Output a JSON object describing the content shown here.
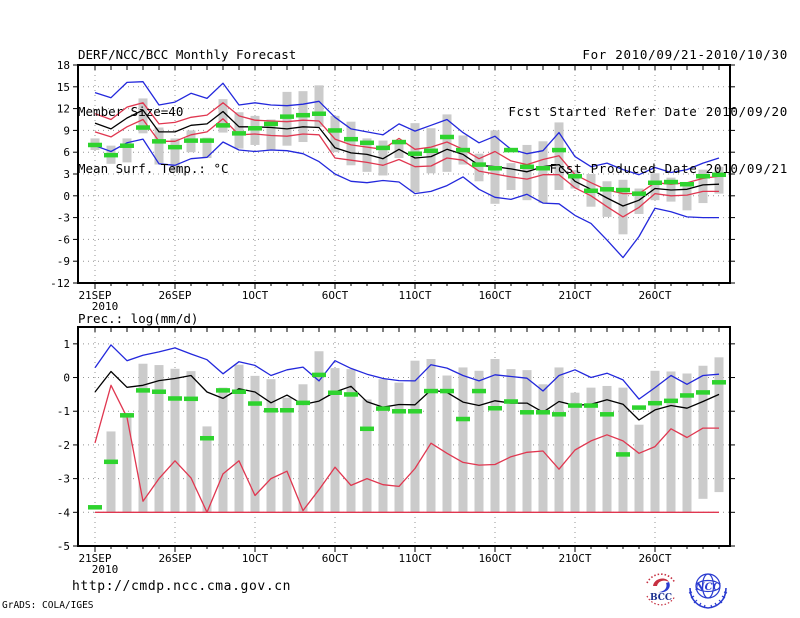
{
  "header": {
    "title": "DERF/NCC/BCC Monthly Forecast",
    "member_size": "Member Size=40",
    "for_period": "For 2010/09/21-2010/10/30",
    "fcst_started": "Fcst Started Refer Date 2010/09/20",
    "fcst_produced": "Fcst Produced Date 2010/09/21"
  },
  "footer": {
    "url": "http://cmdp.ncc.cma.gov.cn",
    "grads_credit": "GrADS: COLA/IGES",
    "logos": [
      {
        "name": "bcc-logo",
        "label": "BCC"
      },
      {
        "name": "ncc-logo",
        "label": "NCC"
      }
    ]
  },
  "colors": {
    "blue": "#2328dc",
    "red": "#e03750",
    "green": "#2ed32e",
    "bar": "#cbcbcb",
    "grid": "#949494",
    "black": "#000000",
    "logo_blue": "#2a3bd0",
    "logo_red": "#c63041",
    "logo_navy": "#1a2f8f"
  },
  "chart_data": [
    {
      "type": "line",
      "name": "surface-temperature-forecast",
      "title": "Mean Surf. Temp.: °C",
      "n_days": 40,
      "start_date": "21SEP2010",
      "x_tick_labels": [
        "21SEP",
        "26SEP",
        "1OCT",
        "6OCT",
        "11OCT",
        "16OCT",
        "21OCT",
        "26OCT"
      ],
      "x_tick_days": [
        0,
        5,
        10,
        15,
        20,
        25,
        30,
        35
      ],
      "x_sub_label": "2010",
      "ylim": [
        -12,
        18
      ],
      "y_ticks": [
        18,
        15,
        12,
        9,
        6,
        3,
        0,
        -3,
        -6,
        -9,
        -12
      ],
      "grid": true,
      "series": [
        {
          "name": "member-max",
          "color": "blue",
          "values": [
            14.2,
            13.5,
            15.6,
            15.7,
            12.5,
            12.9,
            14.1,
            13.4,
            15.5,
            12.5,
            12.8,
            12.5,
            12.4,
            12.6,
            13.0,
            10.8,
            9.2,
            8.8,
            8.4,
            9.9,
            8.9,
            9.7,
            10.5,
            8.7,
            7.3,
            8.2,
            6.4,
            5.8,
            6.2,
            8.7,
            5.4,
            4.0,
            4.5,
            3.6,
            2.9,
            3.9,
            3.2,
            3.6,
            4.5,
            5.2
          ]
        },
        {
          "name": "upper-spread",
          "color": "red",
          "values": [
            11.3,
            10.5,
            12.2,
            12.8,
            9.9,
            10.1,
            10.8,
            11.1,
            12.8,
            11.0,
            10.4,
            10.3,
            10.2,
            10.4,
            10.3,
            7.8,
            7.0,
            6.7,
            6.4,
            7.9,
            6.4,
            6.7,
            7.4,
            6.4,
            5.1,
            6.1,
            4.8,
            4.3,
            5.0,
            5.5,
            2.9,
            1.8,
            0.8,
            0.3,
            0.3,
            1.8,
            1.6,
            1.8,
            2.4,
            2.7
          ]
        },
        {
          "name": "ensemble-mean",
          "color": "black",
          "values": [
            10.0,
            9.2,
            10.7,
            11.8,
            8.8,
            8.8,
            9.7,
            9.9,
            11.6,
            9.5,
            9.5,
            9.4,
            9.2,
            9.5,
            9.4,
            6.6,
            5.9,
            5.7,
            5.1,
            6.4,
            5.2,
            5.4,
            6.4,
            5.7,
            4.2,
            4.0,
            3.7,
            3.3,
            4.0,
            4.3,
            2.0,
            0.9,
            -0.3,
            -1.4,
            -0.6,
            1.0,
            0.8,
            0.9,
            1.5,
            1.6
          ]
        },
        {
          "name": "lower-spread",
          "color": "red",
          "values": [
            8.8,
            8.1,
            9.5,
            10.5,
            7.5,
            7.5,
            8.4,
            8.8,
            10.6,
            8.4,
            8.5,
            8.3,
            8.2,
            8.5,
            8.4,
            5.2,
            4.9,
            4.6,
            4.2,
            5.0,
            4.0,
            4.1,
            5.2,
            4.9,
            3.4,
            3.0,
            2.6,
            2.3,
            2.9,
            2.9,
            1.1,
            0.0,
            -1.5,
            -2.9,
            -1.6,
            0.3,
            0.0,
            0.1,
            0.6,
            0.6
          ]
        },
        {
          "name": "member-min",
          "color": "blue",
          "values": [
            6.9,
            6.1,
            7.3,
            7.8,
            4.4,
            4.2,
            5.1,
            5.3,
            7.4,
            6.3,
            6.1,
            6.3,
            6.2,
            5.8,
            4.7,
            3.0,
            2.0,
            1.8,
            2.1,
            1.9,
            0.3,
            0.6,
            1.4,
            2.6,
            0.9,
            -0.2,
            -0.5,
            0.2,
            -1.0,
            -1.1,
            -2.7,
            -3.8,
            -6.1,
            -8.5,
            -5.6,
            -1.7,
            -2.2,
            -2.9,
            -3.0,
            -3.0
          ]
        }
      ],
      "bars": {
        "name": "member-range-bar",
        "color": "bar",
        "low": [
          6.3,
          4.4,
          4.6,
          8.6,
          4.3,
          3.3,
          6.0,
          5.2,
          8.7,
          6.5,
          7.0,
          6.3,
          6.9,
          7.4,
          9.5,
          6.0,
          4.2,
          3.3,
          2.8,
          5.2,
          0.5,
          3.1,
          3.3,
          4.3,
          2.0,
          -1.1,
          0.8,
          -0.6,
          -1.0,
          0.8,
          1.0,
          -1.5,
          -2.9,
          -5.3,
          -2.5,
          -0.6,
          -0.8,
          -2.0,
          -1.0,
          0.3
        ],
        "high": [
          7.9,
          6.9,
          7.9,
          13.4,
          9.4,
          7.9,
          9.0,
          8.0,
          13.3,
          11.5,
          11.0,
          10.5,
          14.3,
          14.4,
          15.2,
          11.0,
          10.2,
          7.9,
          7.6,
          7.4,
          10.0,
          9.3,
          11.2,
          8.3,
          5.8,
          9.0,
          4.5,
          7.0,
          7.5,
          10.1,
          3.5,
          3.0,
          2.0,
          2.2,
          1.0,
          3.1,
          2.5,
          1.5,
          3.6,
          4.0
        ]
      },
      "dashes": {
        "name": "observed-dash",
        "color": "green",
        "values": [
          7.0,
          5.6,
          6.9,
          9.4,
          7.5,
          6.7,
          7.6,
          7.6,
          9.7,
          8.6,
          9.3,
          9.9,
          10.9,
          11.1,
          11.3,
          9.0,
          7.8,
          7.3,
          6.6,
          7.4,
          5.8,
          6.2,
          8.1,
          6.3,
          4.3,
          3.8,
          6.3,
          4.0,
          3.8,
          6.3,
          2.7,
          0.7,
          0.9,
          0.8,
          0.3,
          1.8,
          1.9,
          1.6,
          2.7,
          2.9
        ]
      }
    },
    {
      "type": "line",
      "name": "precipitation-forecast",
      "title": "Prec.: log(mm/d)",
      "n_days": 40,
      "start_date": "21SEP2010",
      "x_tick_labels": [
        "21SEP",
        "26SEP",
        "1OCT",
        "6OCT",
        "11OCT",
        "16OCT",
        "21OCT",
        "26OCT"
      ],
      "x_tick_days": [
        0,
        5,
        10,
        15,
        20,
        25,
        30,
        35
      ],
      "x_sub_label": "2010",
      "ylim": [
        -5,
        1.5
      ],
      "y_ticks": [
        1,
        0,
        -1,
        -2,
        -3,
        -4,
        -5
      ],
      "grid": true,
      "series": [
        {
          "name": "member-max",
          "color": "blue",
          "values": [
            0.29,
            0.97,
            0.5,
            0.66,
            0.76,
            0.88,
            0.7,
            0.53,
            0.11,
            0.47,
            0.36,
            0.06,
            0.23,
            0.31,
            -0.1,
            0.5,
            0.27,
            0.1,
            -0.03,
            -0.09,
            -0.1,
            0.38,
            0.28,
            0.06,
            -0.1,
            0.08,
            0.03,
            -0.02,
            -0.4,
            0.06,
            0.23,
            0.0,
            0.13,
            -0.07,
            -0.64,
            -0.3,
            0.06,
            -0.2,
            0.06,
            0.1
          ]
        },
        {
          "name": "ensemble-mean",
          "color": "black",
          "values": [
            -0.43,
            0.18,
            -0.29,
            -0.23,
            -0.09,
            -0.03,
            0.06,
            -0.43,
            -0.62,
            -0.33,
            -0.43,
            -0.75,
            -0.52,
            -0.8,
            -0.7,
            -0.43,
            -0.26,
            -0.72,
            -0.88,
            -0.8,
            -0.81,
            -0.37,
            -0.44,
            -0.73,
            -0.83,
            -0.69,
            -0.76,
            -0.76,
            -1.03,
            -0.71,
            -0.83,
            -0.79,
            -0.66,
            -0.79,
            -1.26,
            -0.96,
            -0.83,
            -0.91,
            -0.71,
            -0.5
          ]
        },
        {
          "name": "lower-spread",
          "color": "red",
          "values": [
            -1.94,
            -0.23,
            -1.18,
            -3.67,
            -3.0,
            -2.47,
            -2.98,
            -4.0,
            -2.86,
            -2.47,
            -3.5,
            -3.0,
            -2.78,
            -3.95,
            -3.33,
            -2.66,
            -3.2,
            -3.0,
            -3.18,
            -3.23,
            -2.7,
            -1.95,
            -2.25,
            -2.52,
            -2.6,
            -2.58,
            -2.35,
            -2.22,
            -2.18,
            -2.72,
            -2.15,
            -1.88,
            -1.7,
            -1.88,
            -2.25,
            -2.05,
            -1.52,
            -1.78,
            -1.5,
            -1.5
          ]
        },
        {
          "name": "member-min",
          "color": "red",
          "values": [
            -4.0,
            -4.0,
            -4.0,
            -4.0,
            -4.0,
            -4.0,
            -4.0,
            -4.0,
            -4.0,
            -4.0,
            -4.0,
            -4.0,
            -4.0,
            -4.0,
            -4.0,
            -4.0,
            -4.0,
            -4.0,
            -4.0,
            -4.0,
            -4.0,
            -4.0,
            -4.0,
            -4.0,
            -4.0,
            -4.0,
            -4.0,
            -4.0,
            -4.0,
            -4.0,
            -4.0,
            -4.0,
            -4.0,
            -4.0,
            -4.0,
            -4.0,
            -4.0,
            -4.0,
            -4.0,
            -4.0
          ]
        }
      ],
      "bars": {
        "name": "member-range-bar",
        "color": "bar",
        "low": [
          null,
          -4.0,
          -4.0,
          -4.0,
          -4.0,
          -4.0,
          -4.0,
          -4.0,
          -4.0,
          -4.0,
          -4.0,
          -4.0,
          -4.0,
          -4.0,
          -4.0,
          -4.0,
          -4.0,
          -4.0,
          -4.0,
          -4.0,
          -4.0,
          -4.0,
          -4.0,
          -4.0,
          -4.0,
          -4.0,
          -4.0,
          -4.0,
          -4.0,
          -4.0,
          -4.0,
          -4.0,
          -4.0,
          -4.0,
          -4.0,
          -4.0,
          -4.0,
          -4.0,
          -3.6,
          -3.4
        ],
        "high": [
          null,
          -1.6,
          -1.05,
          0.41,
          0.37,
          0.26,
          0.19,
          -1.45,
          -0.3,
          0.38,
          0.05,
          -0.05,
          -0.6,
          -0.2,
          0.78,
          0.28,
          0.25,
          -0.65,
          -0.05,
          -0.15,
          0.5,
          0.55,
          0.06,
          0.3,
          0.2,
          0.55,
          0.25,
          0.22,
          -0.2,
          0.3,
          -0.45,
          -0.3,
          -0.25,
          -0.3,
          -1.4,
          0.2,
          0.18,
          0.12,
          0.35,
          0.6
        ]
      },
      "dashes": {
        "name": "observed-dash",
        "color": "green",
        "values": [
          -3.85,
          -2.5,
          -1.12,
          -0.38,
          -0.42,
          -0.62,
          -0.63,
          -1.8,
          -0.38,
          -0.42,
          -0.77,
          -0.97,
          -0.97,
          -0.75,
          0.08,
          -0.45,
          -0.5,
          -1.52,
          -0.92,
          -1.0,
          -1.0,
          -0.4,
          -0.4,
          -1.23,
          -0.4,
          -0.91,
          -0.71,
          -1.03,
          -1.03,
          -1.09,
          -0.83,
          -0.83,
          -1.09,
          -2.28,
          -0.89,
          -0.76,
          -0.69,
          -0.53,
          -0.44,
          -0.14
        ]
      }
    }
  ]
}
